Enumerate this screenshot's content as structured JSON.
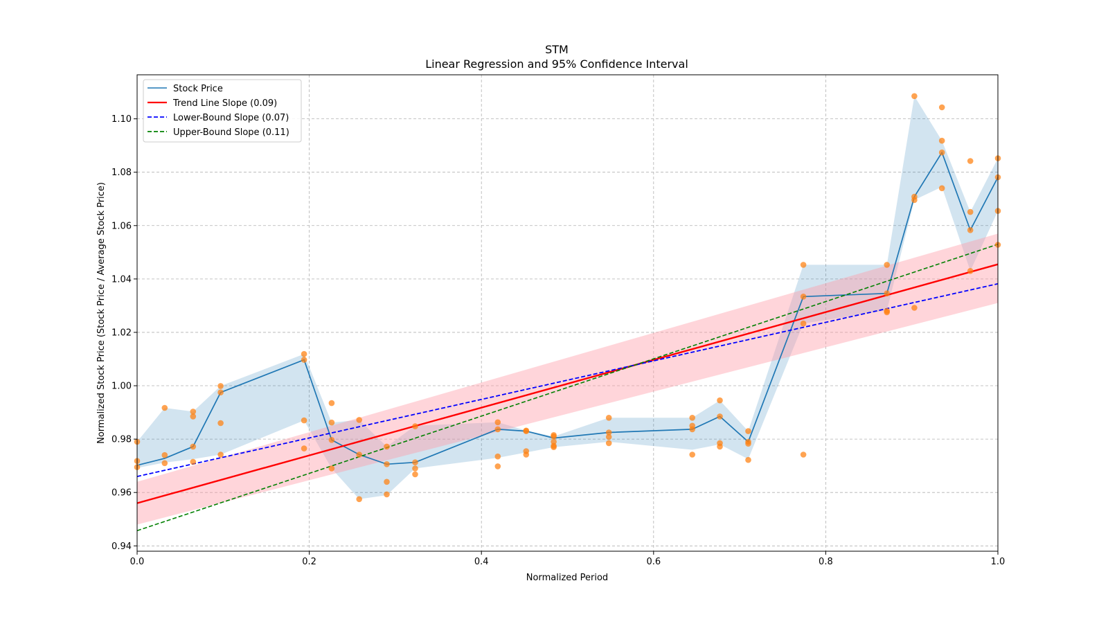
{
  "chart_data": {
    "type": "line",
    "title": "STM",
    "subtitle": "Linear Regression and 95% Confidence Interval",
    "xlabel": "Normalized Period",
    "ylabel": "Normalized Stock Price (Stock Price / Average Stock Price)",
    "xlim": [
      0.0,
      1.0
    ],
    "ylim": [
      0.938,
      1.1165
    ],
    "grid": true,
    "legend_position": "top-left",
    "x_ticks": [
      {
        "value": 0.0,
        "label": "0.0"
      },
      {
        "value": 0.2,
        "label": "0.2"
      },
      {
        "value": 0.4,
        "label": "0.4"
      },
      {
        "value": 0.6,
        "label": "0.6"
      },
      {
        "value": 0.8,
        "label": "0.8"
      },
      {
        "value": 1.0,
        "label": "1.0"
      }
    ],
    "y_ticks": [
      {
        "value": 0.94,
        "label": "0.94"
      },
      {
        "value": 0.96,
        "label": "0.96"
      },
      {
        "value": 0.98,
        "label": "0.98"
      },
      {
        "value": 1.0,
        "label": "1.00"
      },
      {
        "value": 1.02,
        "label": "1.02"
      },
      {
        "value": 1.04,
        "label": "1.04"
      },
      {
        "value": 1.06,
        "label": "1.06"
      },
      {
        "value": 1.08,
        "label": "1.08"
      },
      {
        "value": 1.1,
        "label": "1.10"
      }
    ],
    "colors": {
      "stock": "#1f77b4",
      "stock_band": "#1f77b4",
      "scatter": "#ff7f0e",
      "trend": "#ff0000",
      "trend_band": "#ff9aa8",
      "lower": "#0000ff",
      "upper": "#008000",
      "grid": "#b0b0b0"
    },
    "legend": [
      {
        "label": "Stock Price",
        "color": "#1f77b4",
        "style": "solid"
      },
      {
        "label": "Trend Line Slope (0.09)",
        "color": "#ff0000",
        "style": "solid-thick"
      },
      {
        "label": "Lower-Bound Slope (0.07)",
        "color": "#0000ff",
        "style": "dashed"
      },
      {
        "label": "Upper-Bound Slope (0.11)",
        "color": "#008000",
        "style": "dashed"
      }
    ],
    "stock_price": {
      "name": "Stock Price",
      "x": [
        0.0,
        0.032,
        0.065,
        0.097,
        0.194,
        0.226,
        0.258,
        0.29,
        0.323,
        0.419,
        0.452,
        0.484,
        0.548,
        0.645,
        0.677,
        0.71,
        0.774,
        0.871,
        0.903,
        0.935,
        0.968,
        1.0
      ],
      "y": [
        0.9702,
        0.9728,
        0.9772,
        0.9975,
        1.0097,
        0.9797,
        0.9742,
        0.9706,
        0.9713,
        0.9837,
        0.983,
        0.9804,
        0.9825,
        0.9837,
        0.9885,
        0.979,
        1.0334,
        1.0346,
        1.0708,
        1.0874,
        1.0583,
        1.0781
      ],
      "band_lower": [
        0.9692,
        0.9712,
        0.9725,
        0.9742,
        0.987,
        0.969,
        0.9575,
        0.959,
        0.969,
        0.973,
        0.975,
        0.977,
        0.979,
        0.976,
        0.978,
        0.9725,
        1.0233,
        1.0282,
        1.0696,
        1.0745,
        1.043,
        1.0655
      ],
      "band_upper": [
        0.979,
        0.9917,
        0.9903,
        0.9999,
        1.0119,
        0.9862,
        0.9872,
        0.9772,
        0.985,
        0.9863,
        0.9832,
        0.981,
        0.988,
        0.988,
        0.9945,
        0.983,
        1.0453,
        1.0453,
        1.1085,
        1.0918,
        1.0651,
        1.0852
      ]
    },
    "scatter_points": [
      [
        0.0,
        0.979
      ],
      [
        0.0,
        0.9718
      ],
      [
        0.0,
        0.9695
      ],
      [
        0.032,
        0.9917
      ],
      [
        0.032,
        0.974
      ],
      [
        0.032,
        0.971
      ],
      [
        0.065,
        0.9903
      ],
      [
        0.065,
        0.9885
      ],
      [
        0.065,
        0.9772
      ],
      [
        0.065,
        0.9715
      ],
      [
        0.097,
        0.9999
      ],
      [
        0.097,
        0.9975
      ],
      [
        0.097,
        0.986
      ],
      [
        0.097,
        0.9742
      ],
      [
        0.194,
        1.0119
      ],
      [
        0.194,
        1.0097
      ],
      [
        0.194,
        0.987
      ],
      [
        0.194,
        0.9765
      ],
      [
        0.226,
        0.9935
      ],
      [
        0.226,
        0.9862
      ],
      [
        0.226,
        0.9797
      ],
      [
        0.226,
        0.969
      ],
      [
        0.258,
        0.9872
      ],
      [
        0.258,
        0.9742
      ],
      [
        0.258,
        0.9575
      ],
      [
        0.29,
        0.9772
      ],
      [
        0.29,
        0.9706
      ],
      [
        0.29,
        0.964
      ],
      [
        0.29,
        0.9593
      ],
      [
        0.323,
        0.9848
      ],
      [
        0.323,
        0.9713
      ],
      [
        0.323,
        0.969
      ],
      [
        0.323,
        0.9668
      ],
      [
        0.419,
        0.9863
      ],
      [
        0.419,
        0.9837
      ],
      [
        0.419,
        0.9735
      ],
      [
        0.419,
        0.9698
      ],
      [
        0.452,
        0.9832
      ],
      [
        0.452,
        0.983
      ],
      [
        0.452,
        0.9755
      ],
      [
        0.452,
        0.9742
      ],
      [
        0.484,
        0.9815
      ],
      [
        0.484,
        0.981
      ],
      [
        0.484,
        0.979
      ],
      [
        0.484,
        0.9775
      ],
      [
        0.484,
        0.977
      ],
      [
        0.548,
        0.988
      ],
      [
        0.548,
        0.9825
      ],
      [
        0.548,
        0.9808
      ],
      [
        0.548,
        0.9785
      ],
      [
        0.645,
        0.988
      ],
      [
        0.645,
        0.985
      ],
      [
        0.645,
        0.9837
      ],
      [
        0.645,
        0.9742
      ],
      [
        0.677,
        0.9945
      ],
      [
        0.677,
        0.9885
      ],
      [
        0.677,
        0.9785
      ],
      [
        0.677,
        0.9772
      ],
      [
        0.71,
        0.983
      ],
      [
        0.71,
        0.979
      ],
      [
        0.71,
        0.9783
      ],
      [
        0.71,
        0.9722
      ],
      [
        0.774,
        1.0453
      ],
      [
        0.774,
        1.0334
      ],
      [
        0.774,
        1.0233
      ],
      [
        0.774,
        0.9742
      ],
      [
        0.871,
        1.0453
      ],
      [
        0.871,
        1.0346
      ],
      [
        0.871,
        1.028
      ],
      [
        0.871,
        1.0275
      ],
      [
        0.903,
        1.1085
      ],
      [
        0.903,
        1.0708
      ],
      [
        0.903,
        1.0696
      ],
      [
        0.903,
        1.0292
      ],
      [
        0.935,
        1.1043
      ],
      [
        0.935,
        1.0918
      ],
      [
        0.935,
        1.0874
      ],
      [
        0.935,
        1.074
      ],
      [
        0.968,
        1.0842
      ],
      [
        0.968,
        1.0651
      ],
      [
        0.968,
        1.0583
      ],
      [
        0.968,
        1.043
      ],
      [
        1.0,
        1.0852
      ],
      [
        1.0,
        1.0781
      ],
      [
        1.0,
        1.0655
      ],
      [
        1.0,
        1.0528
      ]
    ],
    "trend_line": {
      "name": "Trend Line Slope (0.09)",
      "x": [
        0.0,
        1.0
      ],
      "y": [
        0.956,
        1.0455
      ]
    },
    "trend_band": {
      "x": [
        0.0,
        1.0
      ],
      "lower": [
        0.948,
        1.031
      ],
      "upper": [
        0.964,
        1.057
      ]
    },
    "lower_bound_line": {
      "name": "Lower-Bound Slope (0.07)",
      "x": [
        0.0,
        1.0
      ],
      "y": [
        0.966,
        1.0382
      ]
    },
    "upper_bound_line": {
      "name": "Upper-Bound Slope (0.11)",
      "x": [
        0.0,
        1.0
      ],
      "y": [
        0.9457,
        1.053
      ]
    }
  }
}
